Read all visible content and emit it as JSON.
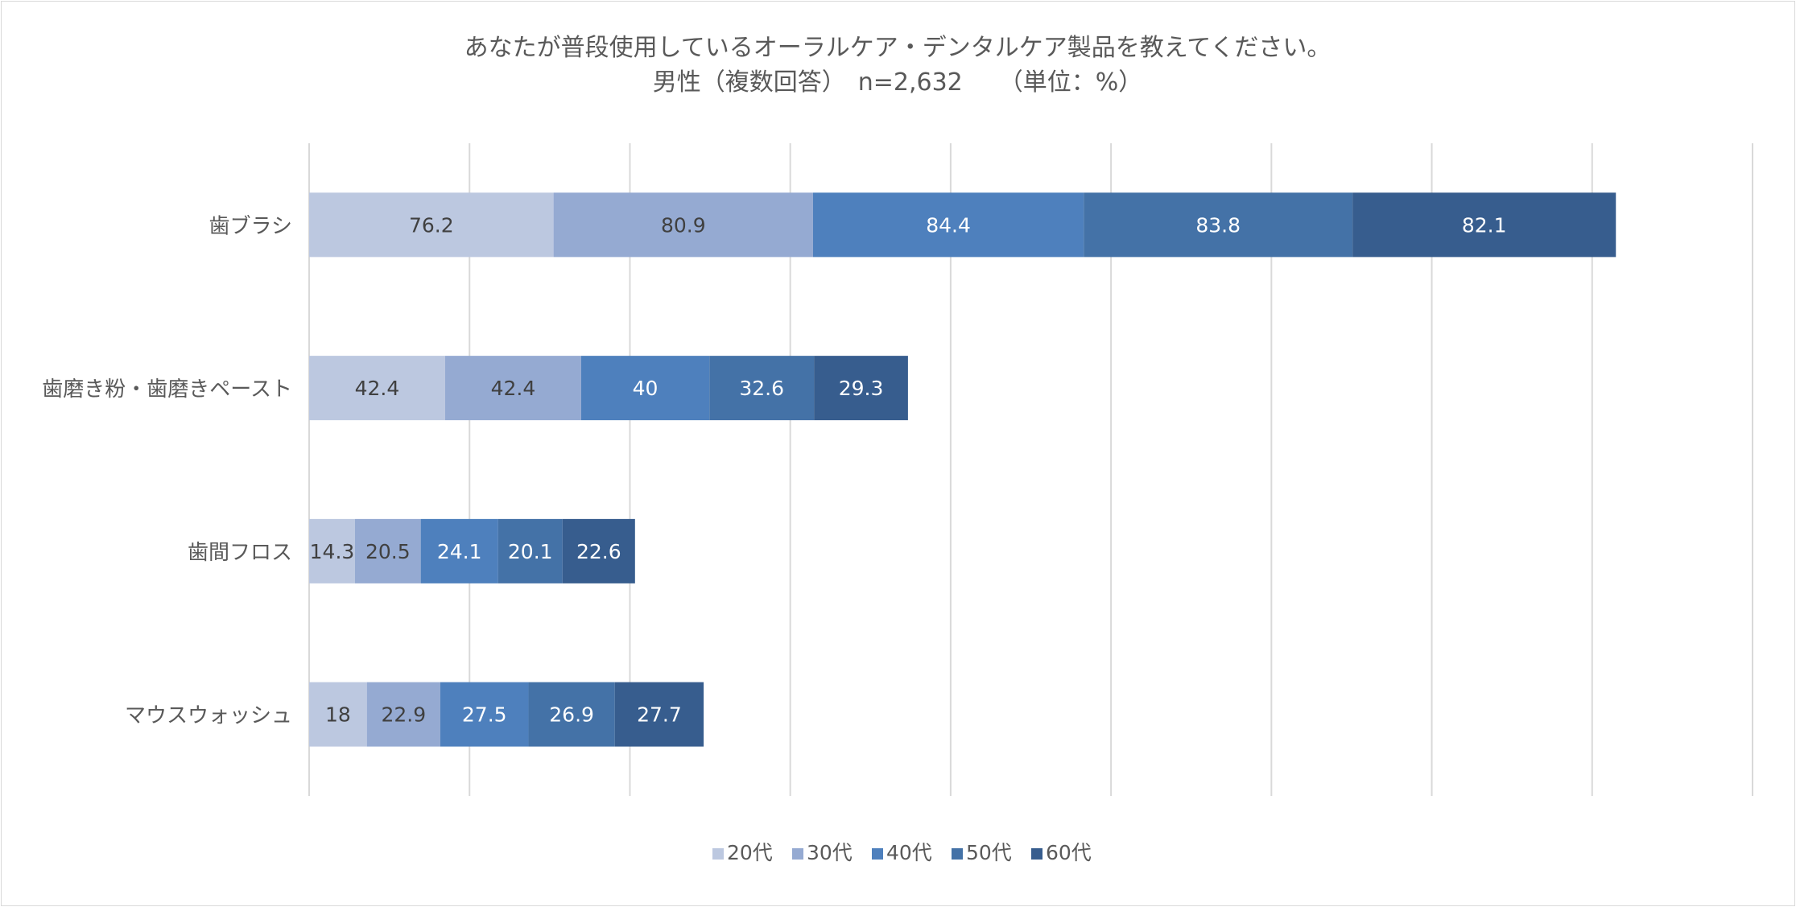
{
  "chart_data": {
    "type": "bar",
    "orientation": "horizontal",
    "stacked": true,
    "title": "あなたが普段使用しているオーラルケア・デンタルケア製品を教えてください。",
    "subtitle": "男性（複数回答）　n=2,632　　（単位：%）",
    "categories": [
      "歯ブラシ",
      "歯磨き粉・歯磨きペースト",
      "歯間フロス",
      "マウスウォッシュ"
    ],
    "series": [
      {
        "name": "20代",
        "color": "#bcc8e0",
        "values": [
          76.2,
          42.4,
          14.3,
          18
        ]
      },
      {
        "name": "30代",
        "color": "#95aad2",
        "values": [
          80.9,
          42.4,
          20.5,
          22.9
        ]
      },
      {
        "name": "40代",
        "color": "#4e80bd",
        "values": [
          84.4,
          40,
          24.1,
          27.5
        ]
      },
      {
        "name": "50代",
        "color": "#4472a7",
        "values": [
          83.8,
          32.6,
          20.1,
          26.9
        ]
      },
      {
        "name": "60代",
        "color": "#375d8e",
        "values": [
          82.1,
          29.3,
          22.6,
          27.7
        ]
      }
    ],
    "xlim": [
      0,
      450
    ],
    "grid_step": 50,
    "grid": true,
    "legend": "bottom",
    "label_colors": {
      "light": "#404040",
      "dark": "#ffffff"
    }
  }
}
